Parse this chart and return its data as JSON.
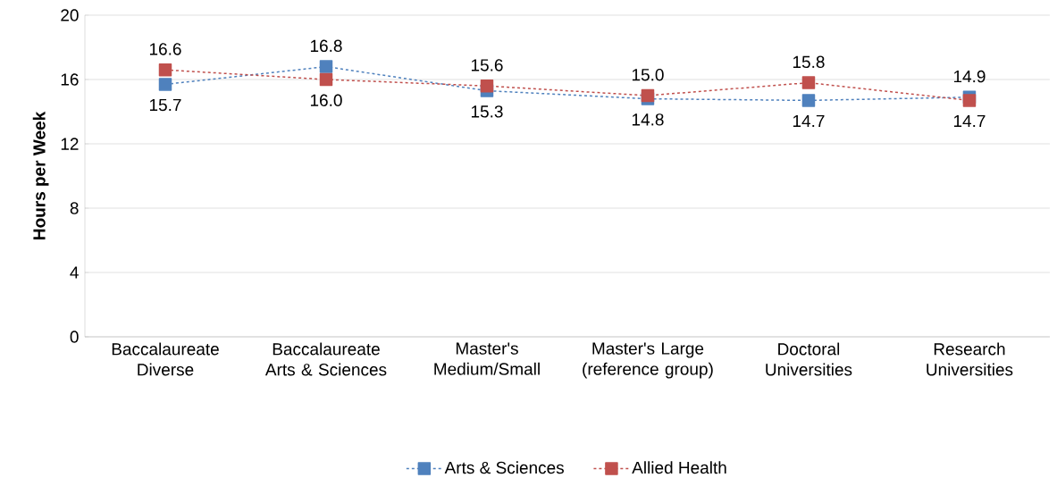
{
  "chart_data": {
    "type": "line",
    "ylabel": "Hours per Week",
    "categories": [
      "Baccalaureate Diverse",
      "Baccalaureate Arts & Sciences",
      "Master's Medium/Small",
      "Master's Large (reference group)",
      "Doctoral Universities",
      "Research Universities"
    ],
    "series": [
      {
        "name": "Arts & Sciences",
        "color": "#4f81bd",
        "values": [
          15.7,
          16.8,
          15.3,
          14.8,
          14.7,
          14.9
        ],
        "value_labels": [
          "15.7",
          "16.8",
          "15.3",
          "14.8",
          "14.7",
          "14.9"
        ]
      },
      {
        "name": "Allied Health",
        "color": "#c0504d",
        "values": [
          16.6,
          16.0,
          15.6,
          15.0,
          15.8,
          14.7
        ],
        "value_labels": [
          "16.6",
          "16.0",
          "15.6",
          "15.0",
          "15.8",
          "14.7"
        ]
      }
    ],
    "ylim": [
      0,
      20
    ],
    "yticks": [
      0,
      4,
      8,
      12,
      16,
      20
    ],
    "grid": "y",
    "legend": "bottom",
    "marker": "square",
    "line_style": "dashed"
  }
}
